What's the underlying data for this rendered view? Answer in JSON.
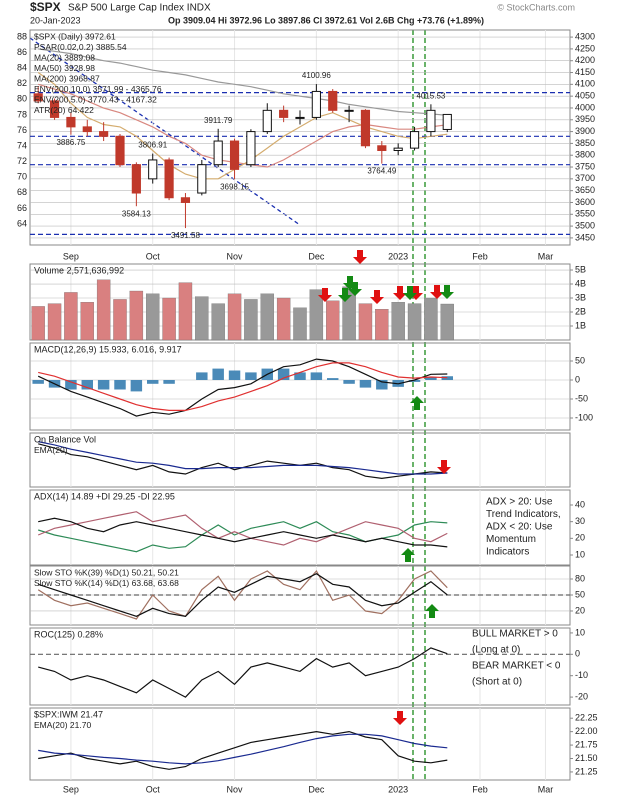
{
  "header": {
    "symbol": "$SPX",
    "name": "S&P 500 Large Cap Index INDX",
    "copyright": "© StockCharts.com",
    "date": "20-Jan-2023",
    "quote": "Op 3909.04 Hi 3972.96 Lo 3897.86 Cl 3972.61 Vol 2.6B Chg +73.76 (+1.89%)"
  },
  "chart_data": [
    {
      "type": "candlestick",
      "categories": [
        null,
        null,
        "Sep",
        null,
        null,
        null,
        null,
        "Oct",
        null,
        null,
        null,
        null,
        "Nov",
        null,
        null,
        null,
        null,
        "Dec",
        null,
        null,
        null,
        null,
        "2023",
        null,
        null,
        null,
        null,
        "Feb",
        null,
        null,
        null,
        "Mar",
        null
      ],
      "open": [
        4060,
        4030,
        3960,
        3920,
        3900,
        3880,
        3760,
        3700,
        3780,
        3620,
        3640,
        3760,
        3860,
        3760,
        3900,
        3990,
        3960,
        3960,
        4070,
        3990,
        3990,
        3840,
        3820,
        3830,
        3900,
        3909.04,
        null,
        null,
        null,
        null,
        null,
        null,
        null
      ],
      "high": [
        4090,
        4040,
        3980,
        3950,
        3940,
        3890,
        3770,
        3806.91,
        3790,
        3640,
        3780,
        3911.79,
        3870,
        3910,
        4020,
        4010,
        3990,
        4100.96,
        4080,
        4010,
        3995,
        3860,
        3850,
        3920,
        4015.53,
        3972.96,
        null,
        null,
        null,
        null,
        null,
        null,
        null
      ],
      "low": [
        4020,
        3950,
        3886.75,
        3880,
        3860,
        3750,
        3584.13,
        3680,
        3610,
        3491.58,
        3630,
        3750,
        3698.15,
        3750,
        3890,
        3940,
        3930,
        3950,
        3980,
        3940,
        3830,
        3764.49,
        3800,
        3820,
        3880,
        3897.86,
        null,
        null,
        null,
        null,
        null,
        null,
        null
      ],
      "close": [
        4030,
        3960,
        3920,
        3900,
        3880,
        3760,
        3640,
        3780,
        3620,
        3600,
        3760,
        3860,
        3740,
        3900,
        3990,
        3960,
        3960,
        4070,
        3990,
        3990,
        3840,
        3820,
        3830,
        3900,
        3990,
        3972.61,
        null,
        null,
        null,
        null,
        null,
        null,
        null
      ],
      "up_color": "#111111",
      "down_color": "#c0392b",
      "series": [
        {
          "color": "#999999",
          "values": [
            4250,
            4240,
            4230,
            4215,
            4200,
            4190,
            4175,
            4160,
            4150,
            4140,
            4125,
            4110,
            4100,
            4090,
            4075,
            4060,
            4050,
            4040,
            4030,
            4015,
            4005,
            3995,
            3985,
            3980,
            3975,
            3969,
            null,
            null,
            null,
            null,
            null,
            null,
            null
          ]
        },
        {
          "color": "#d98880",
          "values": [
            4100,
            4080,
            4060,
            4030,
            4000,
            3980,
            3950,
            3920,
            3880,
            3850,
            3800,
            3780,
            3770,
            3760,
            3750,
            3780,
            3820,
            3860,
            3900,
            3920,
            3930,
            3920,
            3910,
            3910,
            3920,
            3929,
            null,
            null,
            null,
            null,
            null,
            null,
            null
          ]
        },
        {
          "color": "#d4ac6e",
          "values": [
            4150,
            4100,
            4020,
            3960,
            3930,
            3920,
            3880,
            3820,
            3760,
            3720,
            3700,
            3700,
            3740,
            3780,
            3830,
            3880,
            3920,
            3960,
            3980,
            3950,
            3920,
            3900,
            3880,
            3870,
            3880,
            3889,
            null,
            null,
            null,
            null,
            null,
            null,
            null
          ]
        }
      ],
      "legend": [
        {
          "text": "$SPX (Daily) 3972.61",
          "color": "#111111"
        },
        {
          "text": "PSAR(0.02,0.2) 3885.54",
          "color": "#5b7fb5"
        },
        {
          "text": "MA(20) 3889.08",
          "color": "#c9a050"
        },
        {
          "text": "MA(50) 3928.98",
          "color": "#c0392b"
        },
        {
          "text": "MA(200) 3968.87",
          "color": "#111111"
        },
        {
          "text": "ENV(200,10.0) 3571.99 - 4365.76",
          "color": "#111111"
        },
        {
          "text": "ENV(200,5.0) 3770.43 - 4167.32",
          "color": "#888888"
        },
        {
          "text": "ATR(20) 64.422",
          "color": "#111111"
        }
      ],
      "hlines": [
        4065,
        3880,
        3760,
        3465
      ],
      "hline_color": "#1a2fb0",
      "ylim": [
        3420,
        4330
      ],
      "yticks": [
        4300,
        4250,
        4200,
        4150,
        4100,
        4050,
        4000,
        3950,
        3900,
        3850,
        3800,
        3750,
        3700,
        3650,
        3600,
        3550,
        3500,
        3450
      ],
      "y2lim": [
        61.3,
        88.9
      ],
      "y2ticks": [
        88,
        86,
        84,
        82,
        80,
        78,
        76,
        74,
        72,
        70,
        68,
        66,
        64
      ],
      "grid": true
    },
    {
      "type": "bar",
      "title": "Volume 2,571,636,992",
      "values": [
        2400000000,
        2600000000,
        3400000000,
        2700000000,
        4300000000,
        2900000000,
        3500000000,
        3300000000,
        3000000000,
        4100000000,
        3100000000,
        2600000000,
        3300000000,
        2900000000,
        3300000000,
        3000000000,
        2300000000,
        3600000000,
        2800000000,
        3800000000,
        2600000000,
        2200000000,
        2700000000,
        2600000000,
        3000000000,
        2571636992,
        null,
        null,
        null,
        null,
        null,
        null,
        null
      ],
      "up_color": "#999999",
      "down_color": "#d98080",
      "ylim": [
        0,
        5430000000
      ],
      "yticks": [
        {
          "value": 5000000000,
          "label": "5B"
        },
        {
          "value": 4000000000,
          "label": "4B"
        },
        {
          "value": 3000000000,
          "label": "3B"
        },
        {
          "value": 2000000000,
          "label": "2B"
        },
        {
          "value": 1000000000,
          "label": "1B"
        }
      ],
      "grid": true
    },
    {
      "type": "line",
      "title": "MACD(12,26,9) 15.933, 6.016, 9.917",
      "series": [
        {
          "type": "bar",
          "color": "#4a8ab8",
          "values": [
            -10,
            -20,
            -25,
            -25,
            -25,
            -25,
            -30,
            -10,
            -10,
            0,
            20,
            30,
            25,
            20,
            30,
            30,
            20,
            20,
            5,
            -10,
            -20,
            -25,
            -18,
            -5,
            7,
            9.917,
            null,
            null,
            null,
            null,
            null,
            null,
            null
          ]
        },
        {
          "color": "#111111",
          "values": [
            10,
            -10,
            -30,
            -45,
            -60,
            -75,
            -95,
            -85,
            -90,
            -80,
            -50,
            -25,
            -20,
            -10,
            15,
            35,
            40,
            55,
            50,
            35,
            15,
            -5,
            -10,
            0,
            15,
            15.933,
            null,
            null,
            null,
            null,
            null,
            null,
            null
          ]
        },
        {
          "color": "#e03030",
          "values": [
            20,
            10,
            -5,
            -20,
            -35,
            -50,
            -65,
            -75,
            -80,
            -80,
            -70,
            -55,
            -45,
            -30,
            -15,
            5,
            20,
            35,
            45,
            45,
            35,
            20,
            8,
            5,
            8,
            6.016,
            null,
            null,
            null,
            null,
            null,
            null,
            null
          ]
        }
      ],
      "ylim": [
        -131.6,
        97.4
      ],
      "yticks": [
        50,
        0,
        -50,
        -100
      ],
      "grid": true
    },
    {
      "type": "line",
      "title": "On Balance Vol",
      "series": [
        {
          "color": "#111111",
          "values": [
            100,
            96,
            90,
            88,
            84,
            80,
            76,
            80,
            74,
            72,
            78,
            82,
            76,
            80,
            84,
            82,
            80,
            82,
            78,
            76,
            70,
            68,
            70,
            72,
            74,
            73,
            null,
            null,
            null,
            null,
            null,
            null,
            null
          ]
        },
        {
          "color": "#1a2a90",
          "values": [
            102,
            99,
            95,
            92,
            89,
            86,
            83,
            82,
            80,
            77,
            77,
            78,
            78,
            78,
            79,
            80,
            80,
            80,
            79,
            78,
            76,
            74,
            72,
            72,
            72,
            73,
            null,
            null,
            null,
            null,
            null,
            null,
            null
          ]
        }
      ],
      "legend": [
        {
          "text": "EMA(20)",
          "color": "#1a2a90"
        }
      ],
      "ylim": [
        60,
        110
      ],
      "yticks": [],
      "grid": false
    },
    {
      "type": "line",
      "title": "ADX(14) 14.89 +DI 29.25 -DI 22.95",
      "series": [
        {
          "color": "#2e8b57",
          "values": [
            25,
            22,
            20,
            18,
            16,
            14,
            12,
            16,
            14,
            15,
            22,
            28,
            22,
            26,
            28,
            30,
            26,
            30,
            24,
            22,
            18,
            20,
            22,
            28,
            30,
            29.25,
            null,
            null,
            null,
            null,
            null,
            null,
            null
          ]
        },
        {
          "color": "#b06070",
          "values": [
            22,
            26,
            28,
            30,
            32,
            34,
            36,
            30,
            32,
            34,
            26,
            20,
            24,
            20,
            18,
            16,
            20,
            18,
            22,
            26,
            30,
            28,
            26,
            20,
            18,
            22.95,
            null,
            null,
            null,
            null,
            null,
            null,
            null
          ]
        },
        {
          "color": "#111111",
          "values": [
            30,
            32,
            30,
            26,
            24,
            28,
            30,
            28,
            26,
            24,
            22,
            20,
            18,
            20,
            22,
            24,
            22,
            20,
            22,
            20,
            18,
            20,
            18,
            16,
            16,
            14.89,
            null,
            null,
            null,
            null,
            null,
            null,
            null
          ]
        }
      ],
      "notes": [
        {
          "text": "ADX > 20: Use",
          "color": "#111111"
        },
        {
          "text": "Trend Indicators,",
          "color": "#111111"
        },
        {
          "text": "ADX < 20: Use",
          "color": "#111111"
        },
        {
          "text": "Momentum",
          "color": "#111111"
        },
        {
          "text": "Indicators",
          "color": "#111111"
        }
      ],
      "ylim": [
        4,
        49
      ],
      "yticks": [
        40,
        30,
        20,
        10
      ],
      "grid": false
    },
    {
      "type": "line",
      "series": [
        {
          "color": "#a07060",
          "values": [
            60,
            40,
            30,
            35,
            25,
            15,
            5,
            50,
            20,
            10,
            60,
            85,
            40,
            80,
            95,
            70,
            60,
            95,
            40,
            50,
            20,
            15,
            40,
            80,
            95,
            63.68,
            null,
            null,
            null,
            null,
            null,
            null,
            null
          ]
        },
        {
          "color": "#111111",
          "values": [
            70,
            60,
            50,
            40,
            30,
            20,
            10,
            25,
            15,
            10,
            40,
            65,
            55,
            70,
            85,
            80,
            75,
            90,
            70,
            65,
            40,
            30,
            35,
            55,
            75,
            50.21,
            null,
            null,
            null,
            null,
            null,
            null,
            null
          ]
        }
      ],
      "legend": [
        {
          "text": "Slow STO %K(39) %D(1) 50.21, 50.21",
          "color": "#111111"
        },
        {
          "text": "Slow STO %K(14) %D(1) 63.68, 63.68",
          "color": "#111111"
        }
      ],
      "hlines": [
        50
      ],
      "hline_color": "#666666",
      "ylim": [
        -6.3,
        104.4
      ],
      "yticks": [
        80,
        50,
        20
      ],
      "grid": true
    },
    {
      "type": "line",
      "title": "ROC(125) 0.28%",
      "series": [
        {
          "color": "#111111",
          "values": [
            -6,
            -8,
            -12,
            -10,
            -12,
            -15,
            -18,
            -12,
            -16,
            -20,
            -12,
            -8,
            -14,
            -6,
            -4,
            -6,
            -8,
            -2,
            -6,
            -4,
            -10,
            -8,
            -6,
            -2,
            3,
            0.28,
            null,
            null,
            null,
            null,
            null,
            null,
            null
          ]
        }
      ],
      "notes": [
        {
          "text": "BULL MARKET > 0",
          "color": "#1a7a1a"
        },
        {
          "text": "(Long at 0)",
          "color": "#1a7a1a"
        },
        {
          "text": "BEAR MARKET < 0",
          "color": "#c0392b"
        },
        {
          "text": "(Short at 0)",
          "color": "#c0392b"
        }
      ],
      "hlines": [
        0
      ],
      "hline_color": "#666666",
      "ylim": [
        -23.7,
        12.3
      ],
      "yticks": [
        10,
        0,
        -10,
        -20
      ],
      "grid": false
    },
    {
      "type": "line",
      "title": "$SPX:IWM 21.47",
      "series": [
        {
          "color": "#111111",
          "values": [
            21.5,
            21.55,
            21.6,
            21.5,
            21.45,
            21.4,
            21.45,
            21.35,
            21.3,
            21.35,
            21.5,
            21.6,
            21.7,
            21.8,
            21.85,
            21.9,
            21.95,
            22.0,
            21.95,
            22.0,
            21.9,
            21.85,
            21.55,
            21.45,
            21.42,
            21.47,
            null,
            null,
            null,
            null,
            null,
            null,
            null
          ]
        },
        {
          "color": "#1a2a90",
          "values": [
            21.65,
            21.6,
            21.58,
            21.55,
            21.52,
            21.5,
            21.47,
            21.45,
            21.42,
            21.4,
            21.42,
            21.46,
            21.52,
            21.58,
            21.65,
            21.72,
            21.8,
            21.87,
            21.92,
            21.95,
            21.95,
            21.92,
            21.85,
            21.78,
            21.73,
            21.7,
            null,
            null,
            null,
            null,
            null,
            null,
            null
          ]
        }
      ],
      "legend": [
        {
          "text": "EMA(20) 21.70",
          "color": "#1a2a90"
        }
      ],
      "ylim": [
        21.1,
        22.44
      ],
      "yticks": [
        22.25,
        {
          "value": 22,
          "label": "22.00"
        },
        21.75,
        {
          "value": 21.5,
          "label": "21.50"
        },
        21.25
      ],
      "grid": false
    }
  ]
}
